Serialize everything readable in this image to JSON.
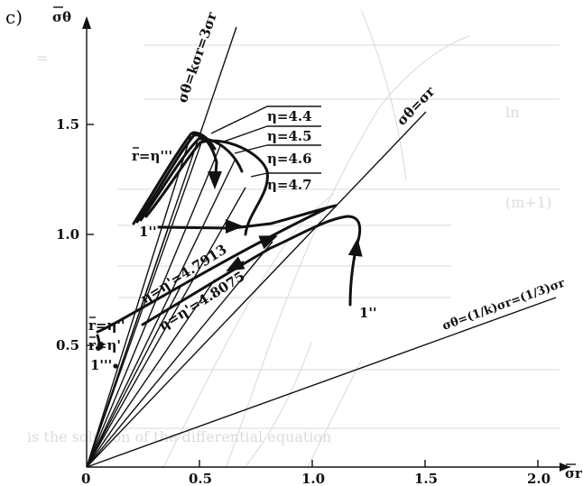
{
  "panel_label": "c)",
  "axes": {
    "x_label": "σr",
    "y_label": "σθ",
    "origin_label": "0",
    "x_ticks": [
      "0.5",
      "1.0",
      "1.5",
      "2.0"
    ],
    "y_ticks": [
      "0.5",
      "1.0",
      "1.5"
    ]
  },
  "lines": {
    "upper": "σθ=kσr=3σr",
    "diagonal": "σθ=σr",
    "lower": "σθ=(1/k)σr=(1/3)σr"
  },
  "curves": {
    "eta_44": "η=4.4",
    "eta_45": "η=4.5",
    "eta_46": "η=4.6",
    "eta_47": "η=4.7",
    "eta_47913": "η=η'=4.7913",
    "eta_48075": "η=η'=4.8075"
  },
  "point_labels": {
    "r_eta_triple": "r=η'''",
    "r_eta_double": "r=η''",
    "r_eta": "r=η'",
    "one_double_left": "1''",
    "one_double_right": "1''",
    "one_triple": "1'''"
  },
  "colors": {
    "ink": "#111111",
    "faint": "#d9d9d9",
    "background": "#ffffff"
  }
}
